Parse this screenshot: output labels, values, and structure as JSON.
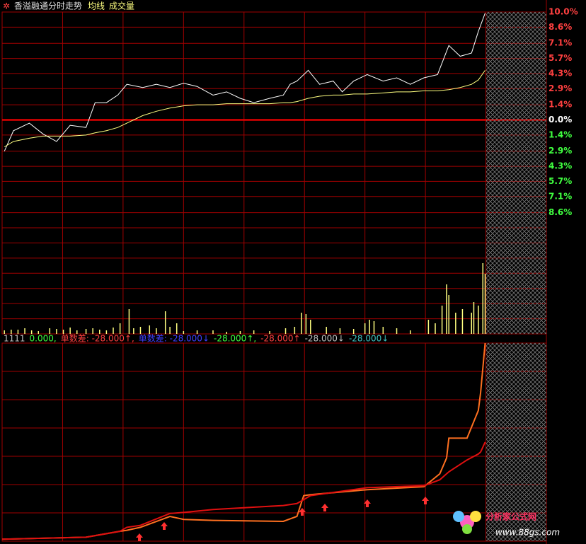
{
  "chart_data": [
    {
      "type": "line",
      "title": "香溢融通分时走势",
      "xlim": [
        0,
        240
      ],
      "ylim": [
        -10,
        10
      ],
      "yticks": [
        {
          "value": 10,
          "label": "10.0%"
        },
        {
          "value": 8.6,
          "label": "8.6%"
        },
        {
          "value": 7.1,
          "label": "7.1%"
        },
        {
          "value": 5.7,
          "label": "5.7%"
        },
        {
          "value": 4.3,
          "label": "4.3%"
        },
        {
          "value": 2.9,
          "label": "2.9%"
        },
        {
          "value": 1.4,
          "label": "1.4%"
        },
        {
          "value": 0,
          "label": "0.0%"
        },
        {
          "value": -1.4,
          "label": "1.4%"
        },
        {
          "value": -2.9,
          "label": "2.9%"
        },
        {
          "value": -4.3,
          "label": "4.3%"
        },
        {
          "value": -5.7,
          "label": "5.7%"
        },
        {
          "value": -7.1,
          "label": "7.1%"
        },
        {
          "value": -8.6,
          "label": "8.6%"
        }
      ],
      "up_color": "#ff4040",
      "down_color": "#40ff40",
      "zero_color": "#ffffff",
      "grid": true,
      "x": [
        1,
        5,
        12,
        18,
        24,
        30,
        37,
        41,
        46,
        51,
        55,
        62,
        68,
        74,
        80,
        86,
        93,
        99,
        105,
        111,
        118,
        124,
        127,
        130,
        135,
        140,
        146,
        150,
        155,
        161,
        168,
        174,
        180,
        186,
        192,
        197,
        202,
        207,
        210,
        213
      ],
      "series": [
        {
          "color": "#ffffff",
          "values": [
            -2.9,
            -1.0,
            -0.3,
            -1.3,
            -2.0,
            -0.5,
            -0.7,
            1.6,
            1.6,
            2.3,
            3.3,
            3.0,
            3.3,
            3.0,
            3.4,
            3.1,
            2.3,
            2.6,
            2.0,
            1.6,
            2.0,
            2.3,
            3.3,
            3.6,
            4.6,
            3.3,
            3.6,
            2.6,
            3.6,
            4.2,
            3.6,
            3.9,
            3.3,
            3.9,
            4.2,
            6.9,
            5.9,
            6.2,
            8.2,
            9.9
          ]
        },
        {
          "name": "均线",
          "color": "#ffff80",
          "values": [
            -2.5,
            -2.0,
            -1.7,
            -1.5,
            -1.5,
            -1.5,
            -1.4,
            -1.2,
            -1.0,
            -0.7,
            -0.3,
            0.4,
            0.8,
            1.1,
            1.3,
            1.4,
            1.4,
            1.5,
            1.5,
            1.5,
            1.5,
            1.6,
            1.6,
            1.7,
            2.0,
            2.2,
            2.3,
            2.3,
            2.4,
            2.4,
            2.5,
            2.6,
            2.6,
            2.7,
            2.7,
            2.8,
            3.0,
            3.3,
            3.7,
            4.6
          ]
        }
      ]
    },
    {
      "type": "bar",
      "title": "成交量",
      "color": "#ffff80",
      "xlim": [
        0,
        240
      ],
      "ylim": [
        0,
        150
      ],
      "x": [
        1,
        4,
        7,
        10,
        13,
        16,
        21,
        24,
        27,
        30,
        33,
        37,
        40,
        43,
        46,
        49,
        52,
        56,
        58,
        61,
        65,
        68,
        72,
        74,
        77,
        80,
        86,
        93,
        99,
        105,
        111,
        118,
        125,
        129,
        132,
        134,
        136,
        143,
        149,
        155,
        160,
        162,
        164,
        168,
        174,
        180,
        188,
        191,
        194,
        196,
        197,
        200,
        203,
        207,
        208,
        210,
        212,
        213
      ],
      "values": [
        5,
        6,
        6,
        8,
        5,
        4,
        8,
        7,
        6,
        9,
        5,
        7,
        8,
        6,
        5,
        9,
        15,
        35,
        8,
        10,
        12,
        8,
        32,
        10,
        15,
        4,
        5,
        5,
        3,
        4,
        5,
        4,
        8,
        10,
        30,
        28,
        20,
        10,
        8,
        7,
        15,
        20,
        18,
        10,
        8,
        5,
        20,
        15,
        40,
        70,
        55,
        30,
        35,
        30,
        45,
        40,
        100,
        85
      ]
    },
    {
      "type": "line",
      "xlim": [
        0,
        240
      ],
      "ylim": [
        0,
        100
      ],
      "legend_texts": [
        {
          "text": "1111",
          "color": "#c0c0c0"
        },
        {
          "text": "0.000,",
          "color": "#40ff40"
        },
        {
          "text": "单数差: -28.000↑,",
          "color": "#ff4040"
        },
        {
          "text": "单数差: -28.000↓",
          "color": "#4040ff"
        },
        {
          "text": "-28.000↑,",
          "color": "#40ff40"
        },
        {
          "text": "-28.000↑",
          "color": "#ff4040"
        },
        {
          "text": "-28.000↓",
          "color": "#c0c0c0"
        },
        {
          "text": "-28.000↓",
          "color": "#40c0c0"
        }
      ],
      "x": [
        0,
        37,
        52,
        55,
        61,
        74,
        80,
        93,
        124,
        130,
        133,
        136,
        161,
        186,
        193,
        196,
        197,
        205,
        210,
        211,
        213
      ],
      "series": [
        {
          "color": "#ff7020",
          "values": [
            1,
            2,
            5,
            5.5,
            7,
            12.5,
            11,
            10.5,
            10,
            12.5,
            23,
            23.5,
            26,
            27.5,
            34,
            42,
            52,
            52,
            66,
            75,
            100
          ]
        },
        {
          "color": "#e01010",
          "values": [
            1,
            2,
            5,
            7,
            8,
            14,
            14.5,
            16,
            18,
            19,
            21,
            23,
            27,
            28,
            31,
            34,
            35,
            41,
            44,
            45,
            50
          ]
        }
      ]
    }
  ],
  "logo": {
    "name": "分析家公式网",
    "url": "www.88gs.com"
  }
}
